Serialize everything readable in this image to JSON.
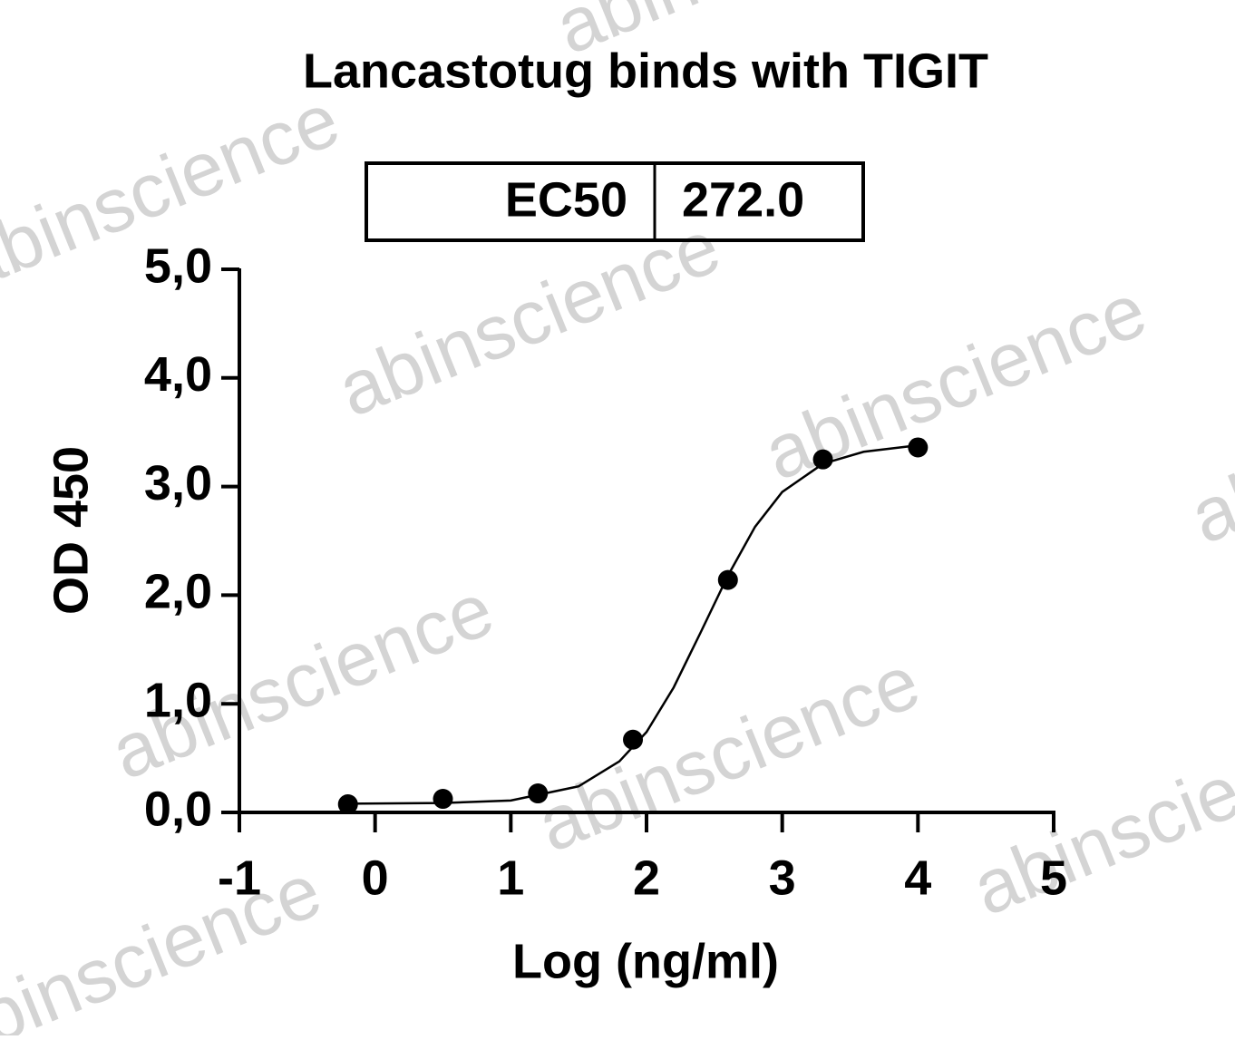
{
  "chart_data": {
    "type": "scatter",
    "title": "Lancastotug binds with TIGIT",
    "stats_table": {
      "label": "EC50",
      "value": "272.0"
    },
    "xlabel": "Log (ng/ml)",
    "ylabel": "OD 450",
    "xlim": [
      -1,
      5
    ],
    "xticks": [
      -1,
      0,
      1,
      2,
      3,
      4,
      5
    ],
    "ylim": [
      0,
      5
    ],
    "yticks": [
      {
        "value": 0,
        "label": "0,0"
      },
      {
        "value": 1,
        "label": "1,0"
      },
      {
        "value": 2,
        "label": "2,0"
      },
      {
        "value": 3,
        "label": "3,0"
      },
      {
        "value": 4,
        "label": "4,0"
      },
      {
        "value": 5,
        "label": "5,0"
      }
    ],
    "series": [
      {
        "color": "#000000",
        "x": [
          -0.2,
          0.5,
          1.2,
          1.9,
          2.6,
          3.3,
          4.0
        ],
        "values": [
          0.075,
          0.125,
          0.175,
          0.67,
          2.14,
          3.25,
          3.36
        ]
      }
    ],
    "fit": {
      "color": "#000000",
      "x": [
        -0.2,
        0.5,
        1.0,
        1.5,
        1.8,
        2.0,
        2.2,
        2.4,
        2.6,
        2.8,
        3.0,
        3.3,
        3.6,
        4.0
      ],
      "values": [
        0.08,
        0.087,
        0.11,
        0.24,
        0.47,
        0.74,
        1.15,
        1.66,
        2.18,
        2.63,
        2.95,
        3.21,
        3.32,
        3.38
      ]
    },
    "watermark": "abinscience"
  }
}
